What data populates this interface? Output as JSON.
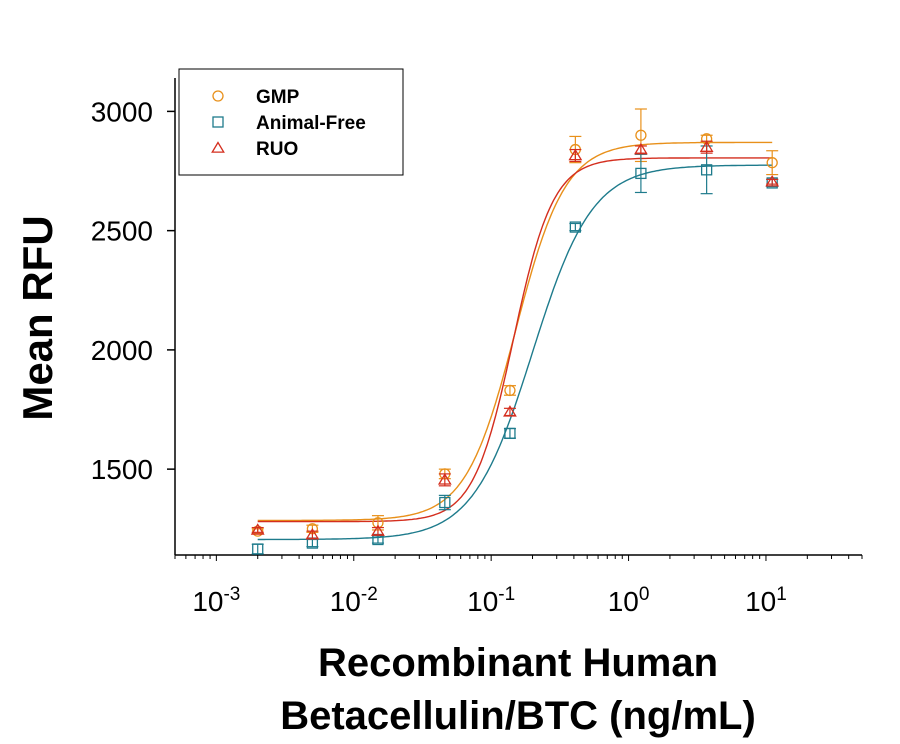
{
  "chart_data": {
    "type": "scatter",
    "title": "",
    "xlabel_lines": [
      "Recombinant Human",
      "Betacellulin/BTC (ng/mL)"
    ],
    "ylabel": "Mean RFU",
    "xscale": "log",
    "xlim": [
      0.0005,
      50
    ],
    "ylim": [
      1140,
      3140
    ],
    "y_ticks": [
      1500,
      2000,
      2500,
      3000
    ],
    "x_ticks": [
      {
        "value": 0.001,
        "base": "10",
        "exp": "-3"
      },
      {
        "value": 0.01,
        "base": "10",
        "exp": "-2"
      },
      {
        "value": 0.1,
        "base": "10",
        "exp": "-1"
      },
      {
        "value": 1,
        "base": "10",
        "exp": "0"
      },
      {
        "value": 10,
        "base": "10",
        "exp": "1"
      }
    ],
    "legend_position": "top-left",
    "x": [
      0.002,
      0.005,
      0.015,
      0.046,
      0.137,
      0.41,
      1.23,
      3.7,
      11.1
    ],
    "series": [
      {
        "name": "GMP",
        "marker": "circle",
        "color": "#E8901A",
        "values": [
          1240,
          1250,
          1275,
          1480,
          1830,
          2840,
          2900,
          2885,
          2785
        ],
        "errors": [
          10,
          15,
          30,
          20,
          20,
          55,
          110,
          15,
          50
        ],
        "fit": {
          "bottom": 1285,
          "top": 2870,
          "ec50": 0.15,
          "hill": 2.4
        }
      },
      {
        "name": "Animal-Free",
        "marker": "square",
        "color": "#1E7B8C",
        "values": [
          1165,
          1190,
          1205,
          1360,
          1650,
          2515,
          2740,
          2755,
          2700
        ],
        "errors": [
          20,
          15,
          15,
          30,
          20,
          15,
          80,
          100,
          15
        ],
        "fit": {
          "bottom": 1205,
          "top": 2775,
          "ec50": 0.2,
          "hill": 2.0
        }
      },
      {
        "name": "RUO",
        "marker": "triangle",
        "color": "#D42E1E",
        "values": [
          1245,
          1225,
          1240,
          1455,
          1740,
          2815,
          2840,
          2850,
          2705
        ],
        "errors": [
          10,
          15,
          15,
          25,
          15,
          25,
          15,
          25,
          10
        ],
        "fit": {
          "bottom": 1280,
          "top": 2805,
          "ec50": 0.145,
          "hill": 3.0
        }
      }
    ]
  }
}
